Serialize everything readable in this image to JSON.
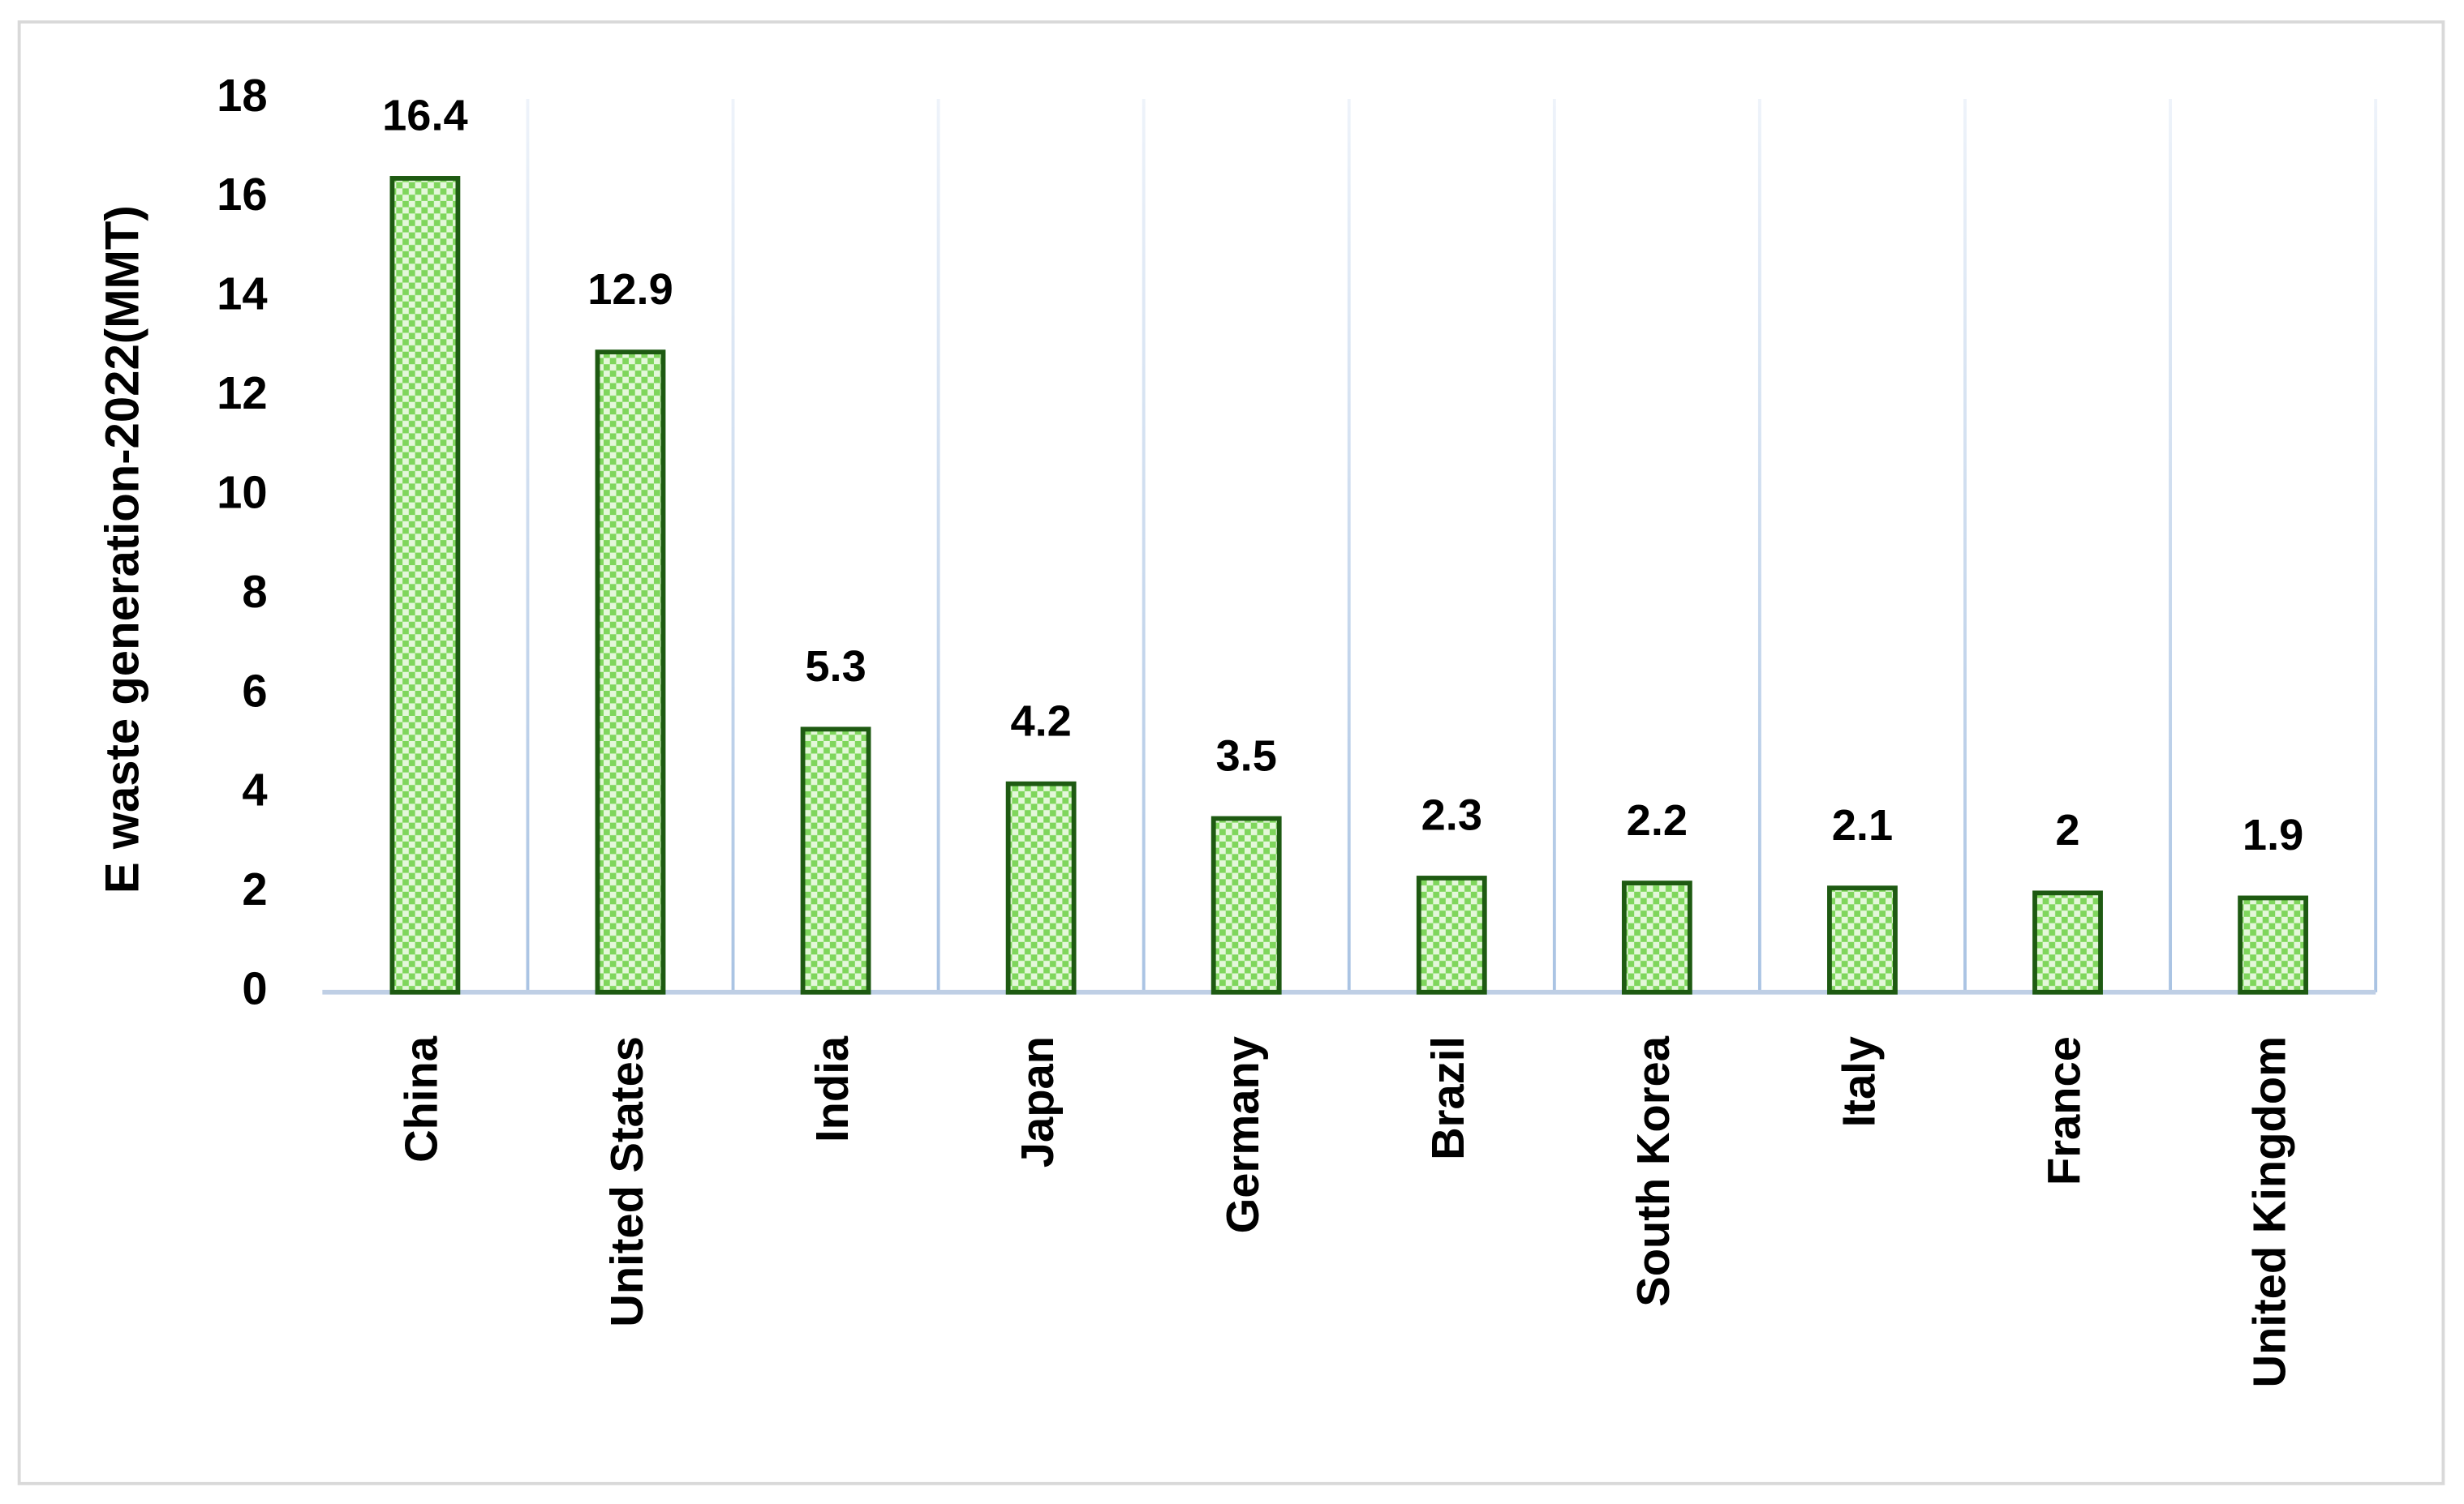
{
  "chart_data": {
    "type": "bar",
    "y_label": "E waste generation-2022(MMT)",
    "categories": [
      "China",
      "United States",
      "India",
      "Japan",
      "Germany",
      "Brazil",
      "South Korea",
      "Italy",
      "France",
      "United Kingdom"
    ],
    "values": [
      16.4,
      12.9,
      5.3,
      4.2,
      3.5,
      2.3,
      2.2,
      2.1,
      2,
      1.9
    ],
    "color": "#7fd65c",
    "edge_color": "#1e5a12",
    "ylim": [
      0,
      18
    ],
    "yticks": [
      0,
      2,
      4,
      6,
      8,
      10,
      12,
      14,
      16,
      18
    ],
    "grid": true
  }
}
